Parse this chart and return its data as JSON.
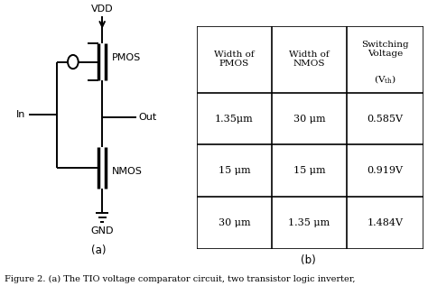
{
  "table_headers": [
    "Width of\nPMOS",
    "Width of\nNMOS",
    "Switching\nVoltage\n(V_th)"
  ],
  "table_rows": [
    [
      "1.35μm",
      "30 μm",
      "0.585V"
    ],
    [
      "15 μm",
      "15 μm",
      "0.919V"
    ],
    [
      "30 μm",
      "1.35 μm",
      "1.484V"
    ]
  ],
  "caption": "Figure 2. (a) The TIO voltage comparator circuit, two transistor logic inverter,",
  "label_a": "(a)",
  "label_b": "(b)",
  "vdd_label": "VDD",
  "gnd_label": "GND",
  "in_label": "In",
  "out_label": "Out",
  "pmos_label": "PMOS",
  "nmos_label": "NMOS",
  "bg_color": "#ffffff",
  "line_color": "#000000",
  "text_color": "#000000",
  "font_size": 8,
  "caption_font_size": 7.0,
  "subscript_th": "th"
}
